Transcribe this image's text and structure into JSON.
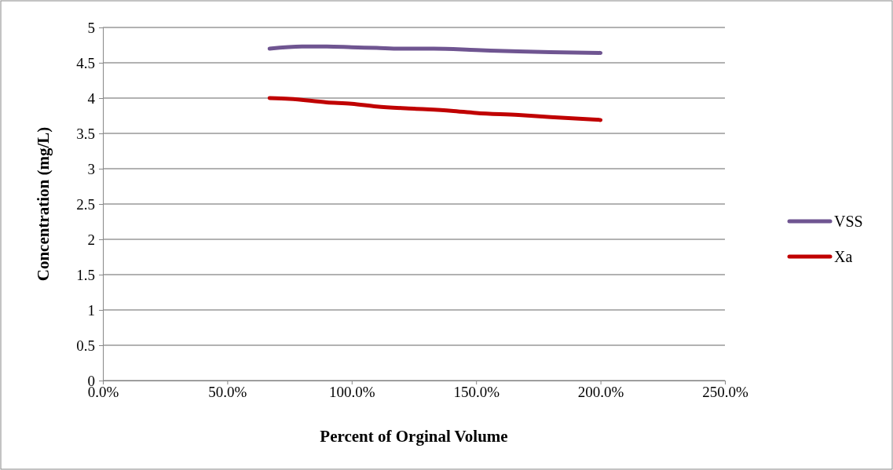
{
  "chart_data": {
    "type": "line",
    "xlabel": "Percent of Orginal Volume",
    "ylabel": "Concentration (mg/L)",
    "series": [
      {
        "name": "VSS",
        "color": "#6f5591",
        "x": [
          0.67,
          0.8,
          0.9,
          1.0,
          1.1,
          1.2,
          1.33,
          1.5,
          1.67,
          1.8,
          2.0
        ],
        "values": [
          4.7,
          4.73,
          4.73,
          4.72,
          4.71,
          4.7,
          4.7,
          4.68,
          4.66,
          4.65,
          4.64
        ]
      },
      {
        "name": "Xa",
        "color": "#c00000",
        "x": [
          0.67,
          0.75,
          0.9,
          1.0,
          1.1,
          1.25,
          1.4,
          1.5,
          1.67,
          1.8,
          2.0
        ],
        "values": [
          4.0,
          3.99,
          3.94,
          3.92,
          3.88,
          3.85,
          3.82,
          3.79,
          3.76,
          3.73,
          3.69
        ]
      }
    ],
    "xlim": [
      0,
      2.5
    ],
    "xticks": [
      {
        "value": 0,
        "label": "0.0%"
      },
      {
        "value": 0.5,
        "label": "50.0%"
      },
      {
        "value": 1,
        "label": "100.0%"
      },
      {
        "value": 1.5,
        "label": "150.0%"
      },
      {
        "value": 2,
        "label": "200.0%"
      },
      {
        "value": 2.5,
        "label": "250.0%"
      }
    ],
    "ylim": [
      0,
      5
    ],
    "yticks": [
      0,
      0.5,
      1,
      1.5,
      2,
      2.5,
      3,
      3.5,
      4,
      4.5,
      5
    ],
    "grid": "y",
    "legend": "right",
    "marker": "none",
    "line_style": "solid"
  }
}
